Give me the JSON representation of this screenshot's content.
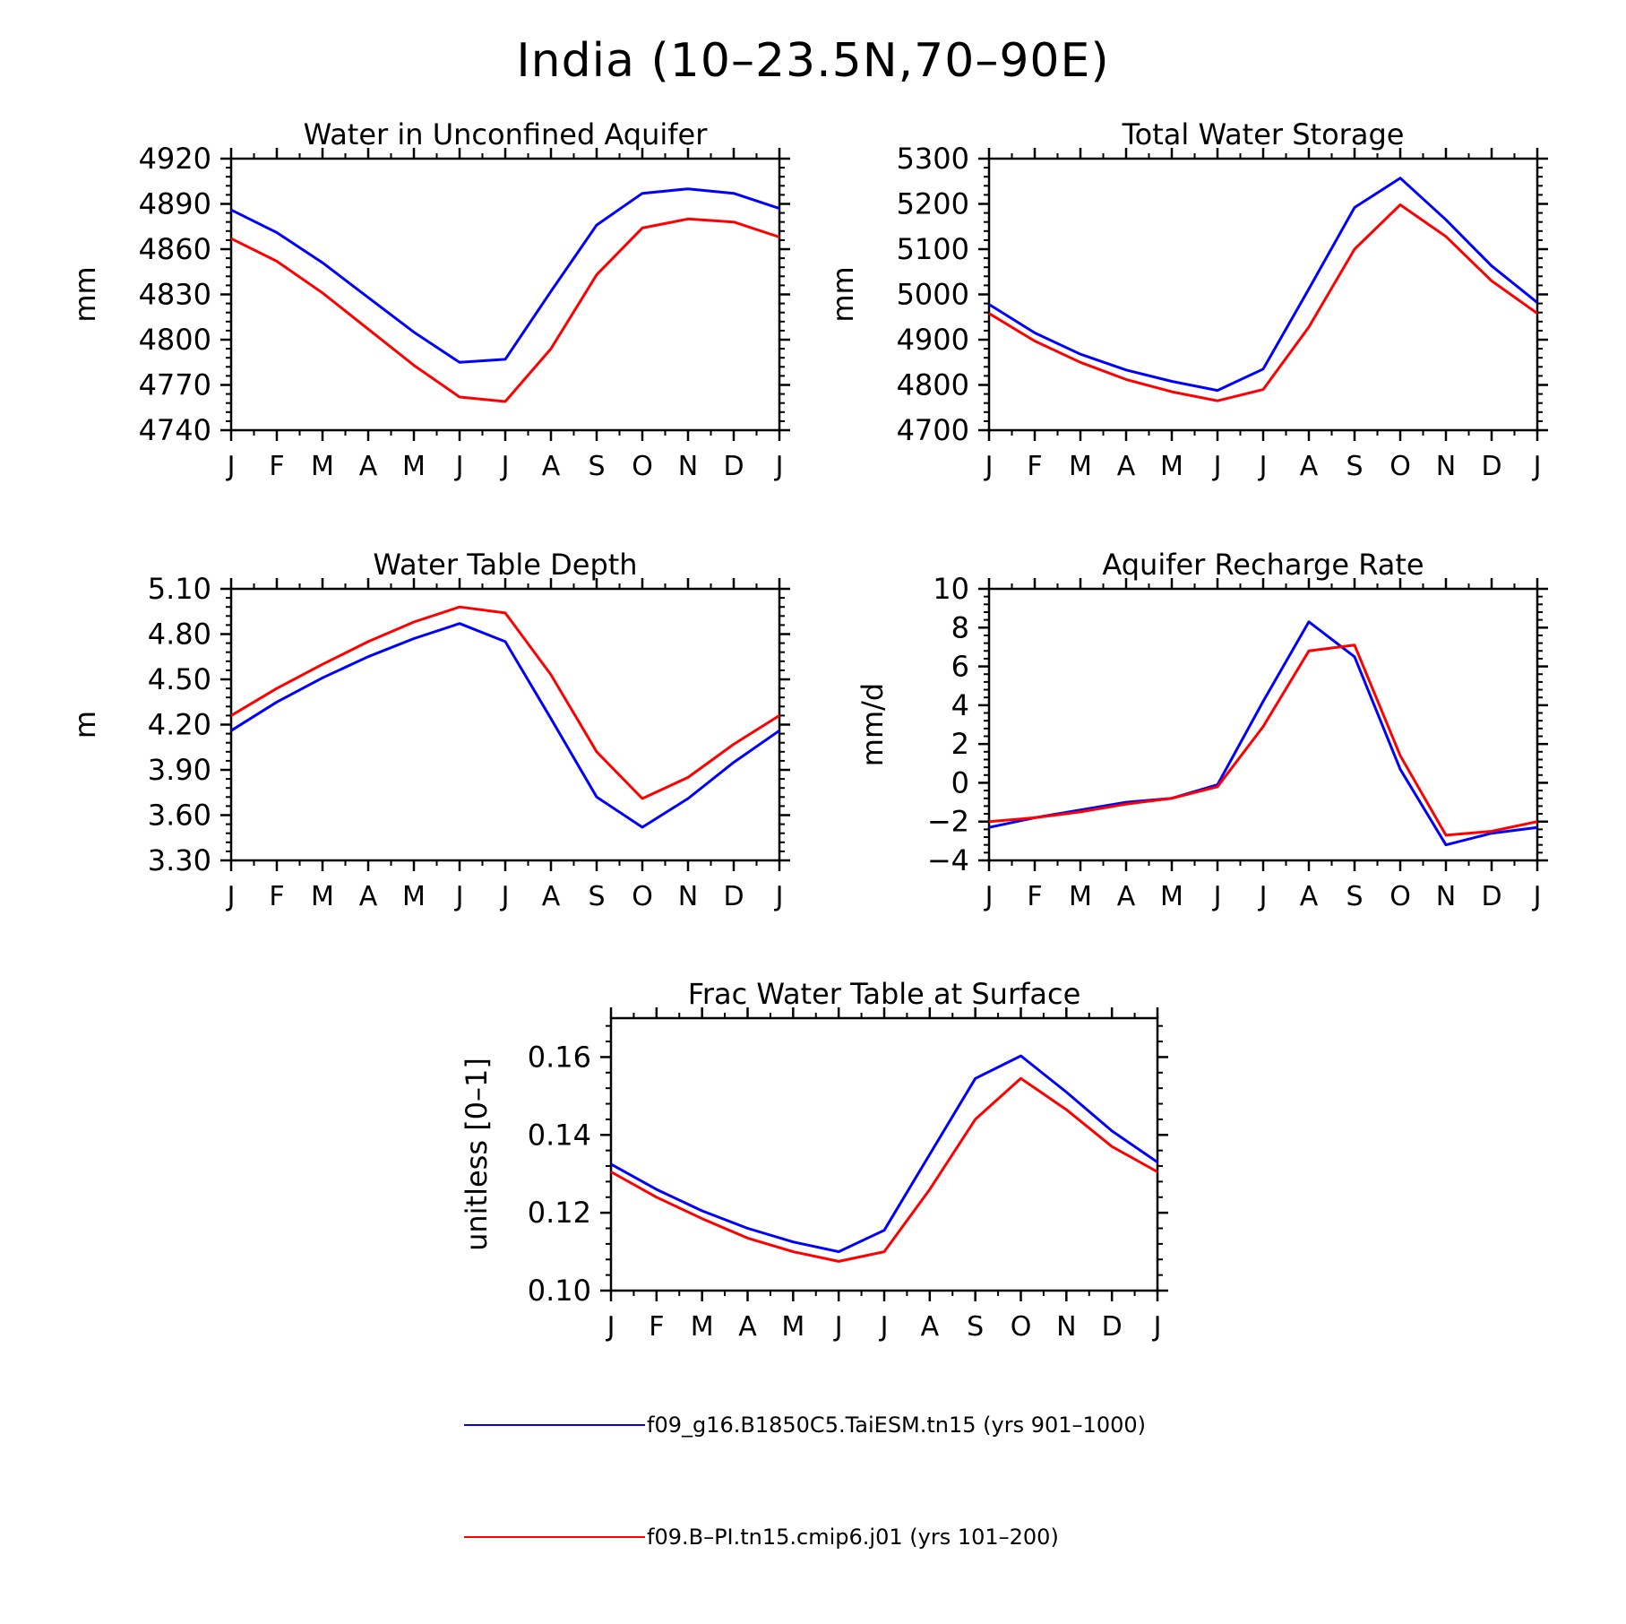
{
  "page": {
    "title": "India (10–23.5N,70–90E)"
  },
  "legend": {
    "entries": [
      {
        "label": "f09_g16.B1850C5.TaiESM.tn15 (yrs 901–1000)",
        "color": "#0000ff"
      },
      {
        "label": "f09.B–PI.tn15.cmip6.j01 (yrs 101–200)",
        "color": "#ff0000"
      }
    ]
  },
  "chart_data": [
    {
      "type": "line",
      "title": "Water in Unconfined Aquifer",
      "ylabel": "mm",
      "xlabel": "",
      "categories": [
        "J",
        "F",
        "M",
        "A",
        "M",
        "J",
        "J",
        "A",
        "S",
        "O",
        "N",
        "D",
        "J"
      ],
      "ylim": [
        4740,
        4920
      ],
      "yticks": [
        4740,
        4770,
        4800,
        4830,
        4860,
        4890,
        4920
      ],
      "ytick_labels": [
        "4740",
        "4770",
        "4800",
        "4830",
        "4860",
        "4890",
        "4920"
      ],
      "series": [
        {
          "color": "#0000ff",
          "values": [
            4886,
            4871,
            4851,
            4828,
            4805,
            4785,
            4787,
            4832,
            4876,
            4897,
            4900,
            4897,
            4887
          ]
        },
        {
          "color": "#ff0000",
          "values": [
            4867,
            4852,
            4831,
            4807,
            4783,
            4762,
            4759,
            4794,
            4843,
            4874,
            4880,
            4878,
            4868
          ]
        }
      ]
    },
    {
      "type": "line",
      "title": "Total Water Storage",
      "ylabel": "mm",
      "xlabel": "",
      "categories": [
        "J",
        "F",
        "M",
        "A",
        "M",
        "J",
        "J",
        "A",
        "S",
        "O",
        "N",
        "D",
        "J"
      ],
      "ylim": [
        4700,
        5300
      ],
      "yticks": [
        4700,
        4800,
        4900,
        5000,
        5100,
        5200,
        5300
      ],
      "ytick_labels": [
        "4700",
        "4800",
        "4900",
        "5000",
        "5100",
        "5200",
        "5300"
      ],
      "series": [
        {
          "color": "#0000ff",
          "values": [
            4978,
            4915,
            4868,
            4833,
            4808,
            4788,
            4835,
            5012,
            5192,
            5257,
            5165,
            5063,
            4982
          ]
        },
        {
          "color": "#ff0000",
          "values": [
            4958,
            4897,
            4850,
            4812,
            4785,
            4765,
            4790,
            4928,
            5100,
            5198,
            5128,
            5030,
            4958
          ]
        }
      ]
    },
    {
      "type": "line",
      "title": "Water Table Depth",
      "ylabel": "m",
      "xlabel": "",
      "categories": [
        "J",
        "F",
        "M",
        "A",
        "M",
        "J",
        "J",
        "A",
        "S",
        "O",
        "N",
        "D",
        "J"
      ],
      "ylim": [
        3.3,
        5.1
      ],
      "yticks": [
        3.3,
        3.6,
        3.9,
        4.2,
        4.5,
        4.8,
        5.1
      ],
      "ytick_labels": [
        "3.30",
        "3.60",
        "3.90",
        "4.20",
        "4.50",
        "4.80",
        "5.10"
      ],
      "series": [
        {
          "color": "#0000ff",
          "values": [
            4.16,
            4.35,
            4.51,
            4.65,
            4.77,
            4.87,
            4.75,
            4.24,
            3.72,
            3.52,
            3.71,
            3.95,
            4.16
          ]
        },
        {
          "color": "#ff0000",
          "values": [
            4.26,
            4.44,
            4.6,
            4.75,
            4.88,
            4.98,
            4.94,
            4.53,
            4.02,
            3.71,
            3.85,
            4.07,
            4.26
          ]
        }
      ]
    },
    {
      "type": "line",
      "title": "Aquifer Recharge Rate",
      "ylabel": "mm/d",
      "xlabel": "",
      "categories": [
        "J",
        "F",
        "M",
        "A",
        "M",
        "J",
        "J",
        "A",
        "S",
        "O",
        "N",
        "D",
        "J"
      ],
      "ylim": [
        -4,
        10
      ],
      "yticks": [
        -4,
        -2,
        0,
        2,
        4,
        6,
        8,
        10
      ],
      "ytick_labels": [
        "−4",
        "−2",
        "0",
        "2",
        "4",
        "6",
        "8",
        "10"
      ],
      "series": [
        {
          "color": "#0000ff",
          "values": [
            -2.3,
            -1.8,
            -1.4,
            -1.0,
            -0.8,
            -0.1,
            4.2,
            8.3,
            6.5,
            0.7,
            -3.2,
            -2.6,
            -2.3
          ]
        },
        {
          "color": "#ff0000",
          "values": [
            -2.0,
            -1.8,
            -1.5,
            -1.1,
            -0.8,
            -0.2,
            2.9,
            6.8,
            7.1,
            1.4,
            -2.7,
            -2.5,
            -2.0
          ]
        }
      ]
    },
    {
      "type": "line",
      "title": "Frac Water Table at Surface",
      "ylabel": "unitless [0–1]",
      "xlabel": "",
      "categories": [
        "J",
        "F",
        "M",
        "A",
        "M",
        "J",
        "J",
        "A",
        "S",
        "O",
        "N",
        "D",
        "J"
      ],
      "ylim": [
        0.1,
        0.17
      ],
      "yticks": [
        0.1,
        0.12,
        0.14,
        0.16
      ],
      "ytick_labels": [
        "0.10",
        "0.12",
        "0.14",
        "0.16"
      ],
      "series": [
        {
          "color": "#0000ff",
          "values": [
            0.1325,
            0.126,
            0.1205,
            0.116,
            0.1125,
            0.11,
            0.1155,
            0.135,
            0.1545,
            0.1603,
            0.151,
            0.141,
            0.133
          ]
        },
        {
          "color": "#ff0000",
          "values": [
            0.1305,
            0.124,
            0.1185,
            0.1135,
            0.11,
            0.1075,
            0.11,
            0.126,
            0.144,
            0.1545,
            0.1465,
            0.137,
            0.1305
          ]
        }
      ]
    }
  ]
}
